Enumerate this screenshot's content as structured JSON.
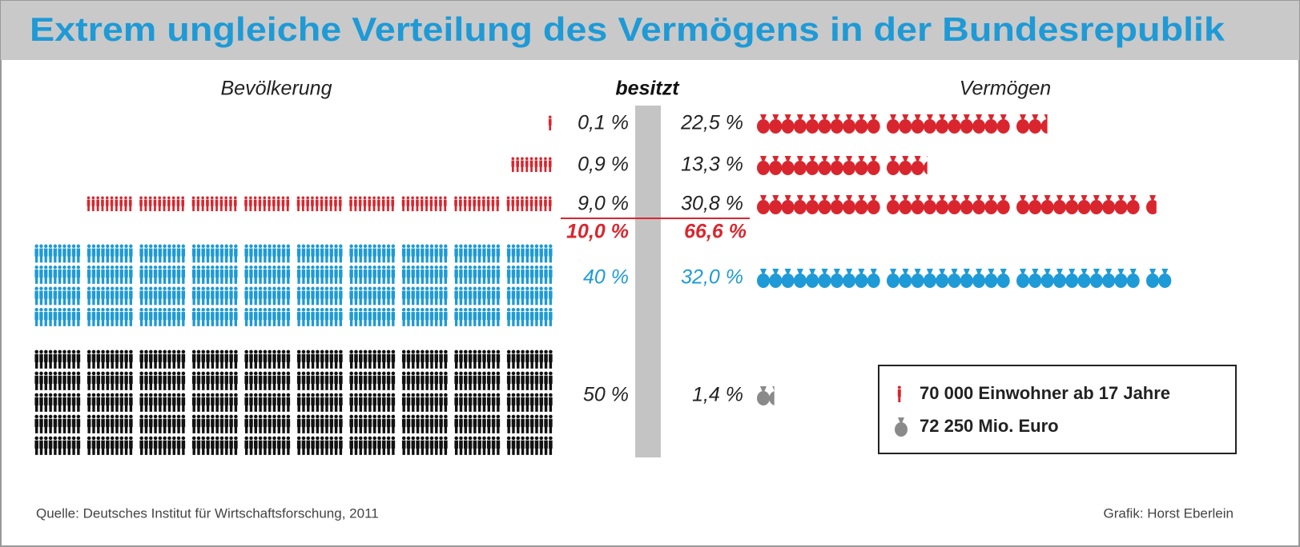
{
  "chart_data": {
    "type": "pictogram",
    "title": "Extrem ungleiche Verteilung des Vermögens in der Bundesrepublik",
    "headers": {
      "population": "Bevölkerung",
      "owns": "besitzt",
      "wealth": "Vermögen"
    },
    "groups": [
      {
        "color": "#d9262e",
        "text_color": "#222222",
        "population": 0.1,
        "population_label": "0,1 %",
        "wealth": 22.5,
        "wealth_label": "22,5 %"
      },
      {
        "color": "#d9262e",
        "text_color": "#222222",
        "population": 0.9,
        "population_label": "0,9 %",
        "wealth": 13.3,
        "wealth_label": "13,3 %"
      },
      {
        "color": "#d9262e",
        "text_color": "#222222",
        "population": 9.0,
        "population_label": "9,0 %",
        "wealth": 30.8,
        "wealth_label": "30,8 %"
      },
      {
        "color": "#1e9ad6",
        "text_color": "#1e9ad6",
        "population": 40,
        "population_label": "40 %",
        "wealth": 32.0,
        "wealth_label": "32,0 %"
      },
      {
        "color": "#111111",
        "wealth_color": "#8a8a8a",
        "text_color": "#222222",
        "population": 50,
        "population_label": "50 %",
        "wealth": 1.4,
        "wealth_label": "1,4 %"
      }
    ],
    "subtotal": {
      "color": "#d9262e",
      "population": 10.0,
      "population_label": "10,0 %",
      "wealth": 66.6,
      "wealth_label": "66,6 %"
    },
    "legend": [
      {
        "icon": "person",
        "color": "#d9262e",
        "label": "70 000 Einwohner ab 17 Jahre"
      },
      {
        "icon": "bag",
        "color": "#8a8a8a",
        "label": "72 250 Mio. Euro"
      }
    ],
    "source": "Quelle: Deutsches Institut für Wirtschaftsforschung, 2011",
    "credit": "Grafik: Horst Eberlein"
  }
}
